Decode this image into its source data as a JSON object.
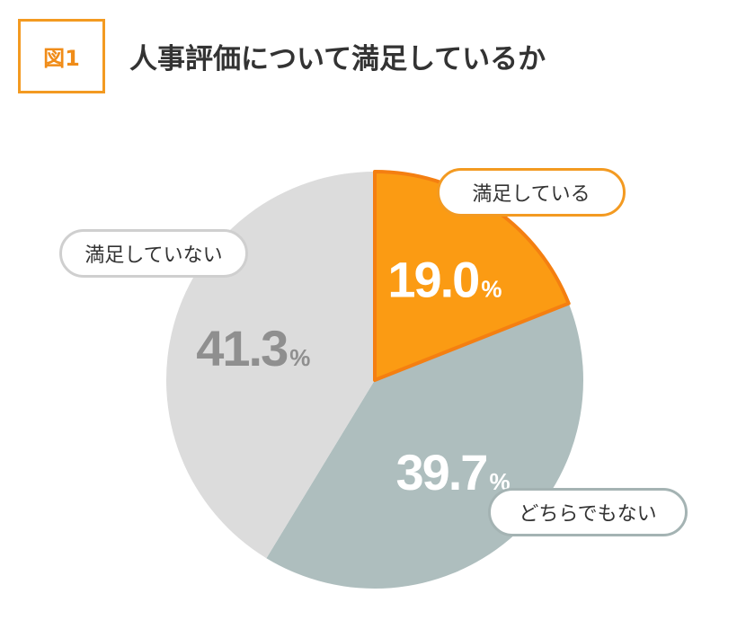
{
  "header": {
    "figure_label": "図1",
    "title": "人事評価について満足しているか"
  },
  "chart_data": {
    "type": "pie",
    "title": "人事評価について満足しているか",
    "unit": "%",
    "slices": [
      {
        "label": "満足している",
        "value": 19.0,
        "display": "19.0",
        "color": "#fb9b13",
        "label_color": "#ffffff",
        "callout_border": "#f39a21"
      },
      {
        "label": "どちらでもない",
        "value": 39.7,
        "display": "39.7",
        "color": "#aebebe",
        "label_color": "#ffffff",
        "callout_border": "#a4b3b3"
      },
      {
        "label": "満足していない",
        "value": 41.3,
        "display": "41.3",
        "color": "#dcdcdc",
        "label_color": "#8f8f8f",
        "callout_border": "#cfcfcf"
      }
    ],
    "start_angle": "12 o'clock",
    "direction": "clockwise",
    "highlight_stroke": "#f47f11"
  }
}
